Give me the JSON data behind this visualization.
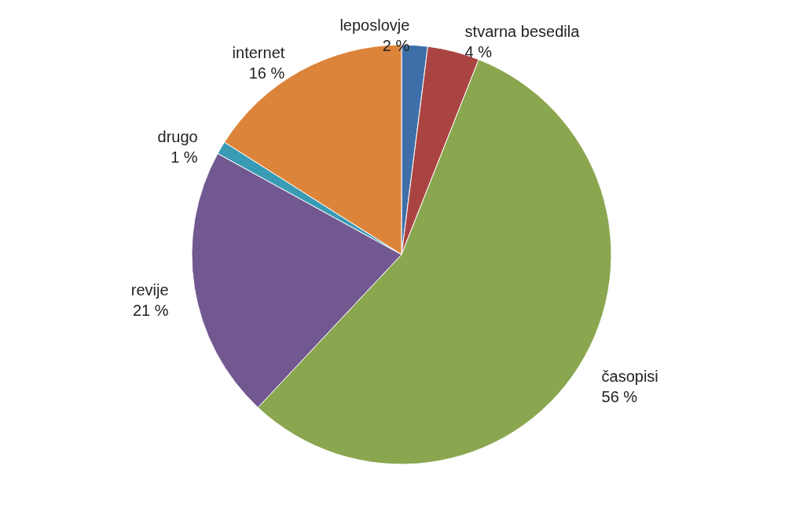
{
  "chart_data": {
    "type": "pie",
    "categories": [
      "leposlovje",
      "stvarna besedila",
      "časopisi",
      "revije",
      "drugo",
      "internet"
    ],
    "values": [
      2,
      4,
      56,
      21,
      1,
      16
    ],
    "value_labels": [
      "2 %",
      "4 %",
      "56 %",
      "21 %",
      "1 %",
      "16 %"
    ],
    "colors": [
      "#3f6fa8",
      "#aa4442",
      "#8aa64f",
      "#725890",
      "#3a9bb5",
      "#dd843b"
    ],
    "legend": false
  }
}
